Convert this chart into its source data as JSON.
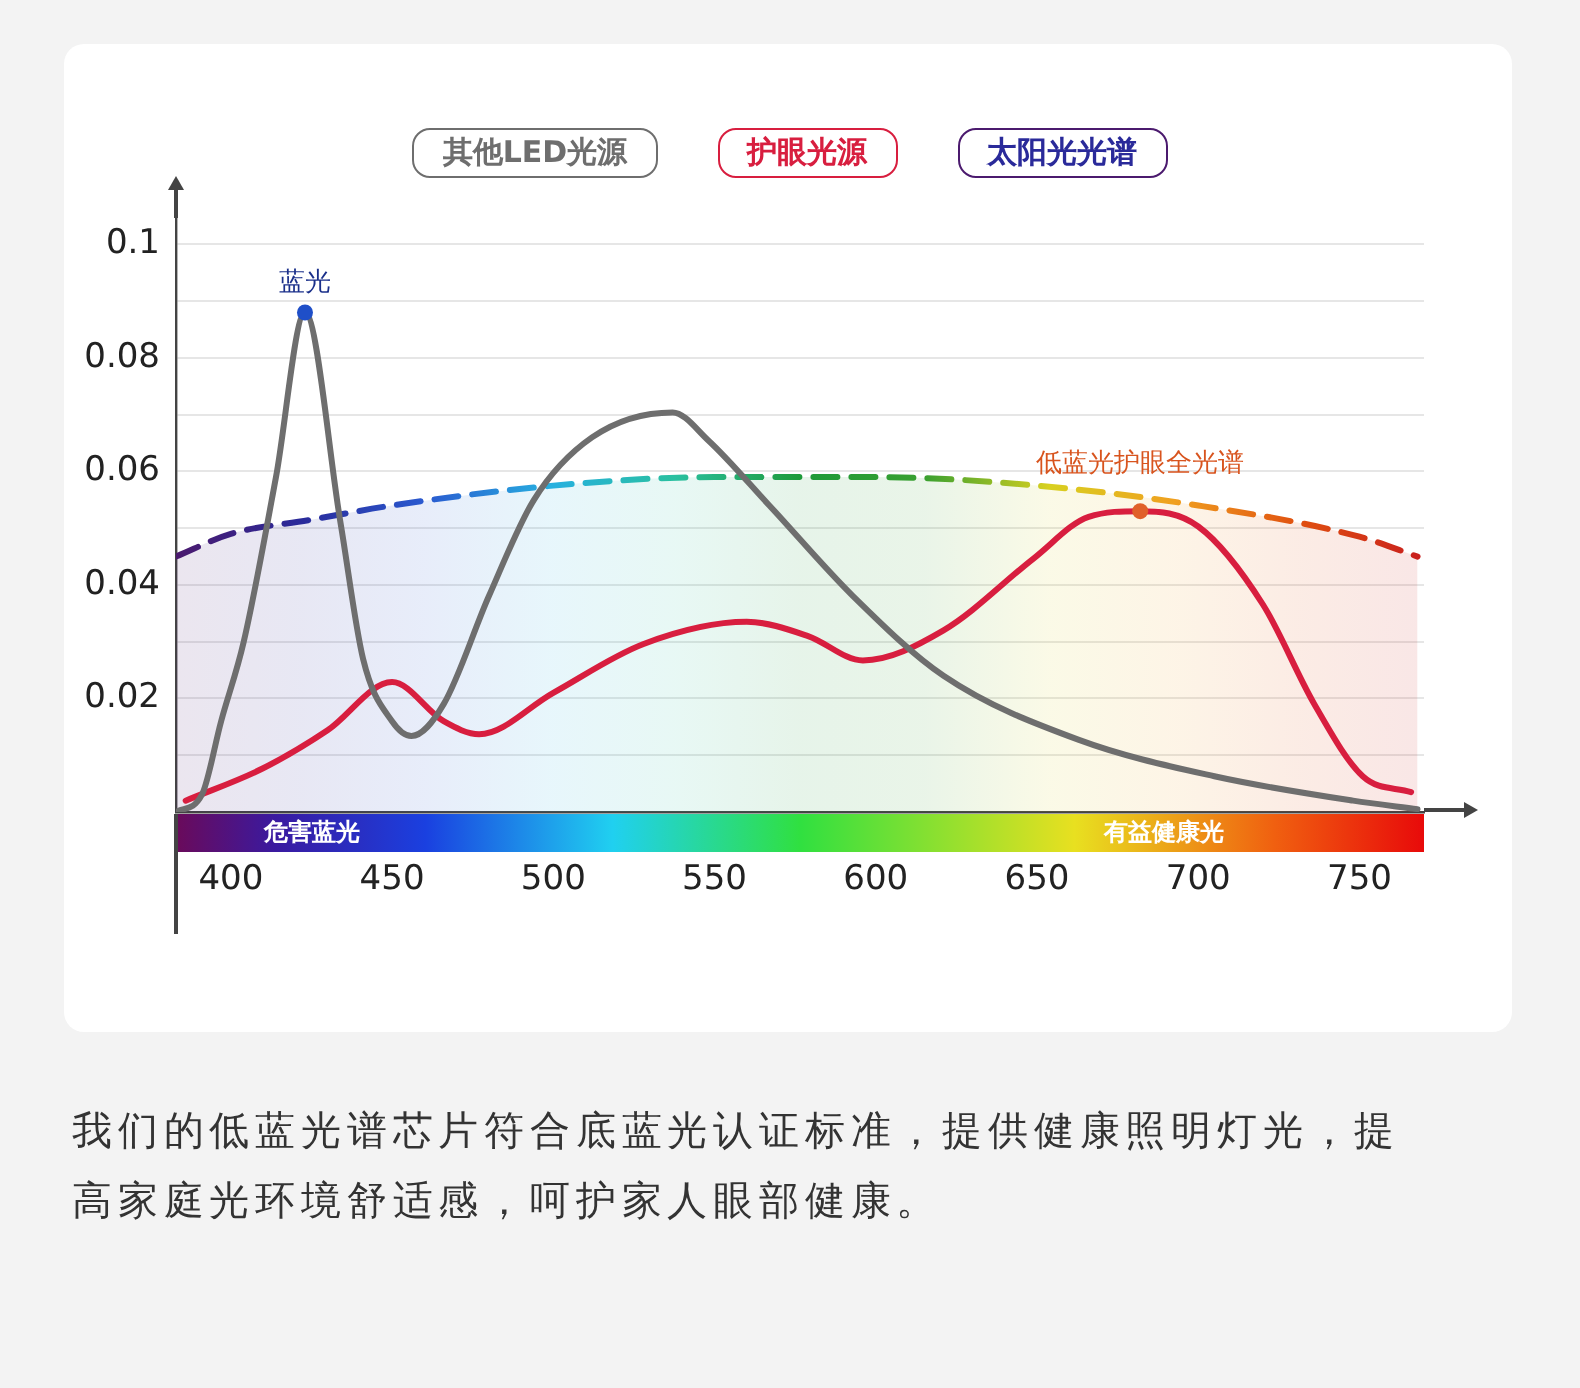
{
  "chart_data": {
    "type": "line",
    "legend": "top",
    "grid": "y",
    "xlim": [
      383,
      770
    ],
    "xticks": [
      400,
      450,
      500,
      550,
      600,
      650,
      700,
      750
    ],
    "ylim": [
      0,
      0.105
    ],
    "yticks": [
      {
        "value": 0,
        "label": null
      },
      {
        "value": 0.01,
        "label": null
      },
      0.02,
      {
        "value": 0.03,
        "label": null
      },
      0.04,
      {
        "value": 0.05,
        "label": null
      },
      0.06,
      {
        "value": 0.07,
        "label": null
      },
      0.08,
      {
        "value": 0.09,
        "label": null
      },
      0.1
    ],
    "series": [
      {
        "name": "其他LED光源",
        "color": "#6e6e6e",
        "x": [
          383,
          391,
          397,
          404,
          414,
          423,
          434,
          441,
          450,
          456,
          466,
          480,
          494,
          512,
          537,
          548,
          567,
          593,
          621,
          663,
          705,
          748,
          768
        ],
        "values": [
          0,
          0.003,
          0.016,
          0.03,
          0.059,
          0.088,
          0.051,
          0.027,
          0.016,
          0.0134,
          0.019,
          0.038,
          0.055,
          0.066,
          0.0704,
          0.0655,
          0.054,
          0.038,
          0.024,
          0.0127,
          0.0063,
          0.002,
          0.0005
        ]
      },
      {
        "name": "护眼光源",
        "color": "#d81e3f",
        "x": [
          386,
          410,
          430,
          450,
          466,
          477,
          500,
          528,
          560,
          579,
          596,
          621,
          649,
          666,
          682,
          700,
          720,
          736,
          751,
          766
        ],
        "values": [
          0.002,
          0.0077,
          0.0144,
          0.0229,
          0.016,
          0.0137,
          0.021,
          0.0296,
          0.0335,
          0.031,
          0.0267,
          0.032,
          0.0447,
          0.052,
          0.053,
          0.0503,
          0.0366,
          0.019,
          0.0063,
          0.0035
        ]
      },
      {
        "name": "太阳光光谱",
        "type": "area",
        "line_style": "dashed",
        "colors": [
          "#4b1a6e",
          "#2a2a9a",
          "#2a5ad0",
          "#27b0e0",
          "#2ac0a0",
          "#1e9a3a",
          "#3aa030",
          "#d8d020",
          "#f0a020",
          "#e05010",
          "#c81e1e"
        ],
        "x": [
          383,
          400,
          425,
          450,
          500,
          550,
          600,
          650,
          700,
          750,
          768
        ],
        "values": [
          0.045,
          0.049,
          0.0515,
          0.054,
          0.0575,
          0.059,
          0.059,
          0.0575,
          0.054,
          0.0485,
          0.045
        ]
      }
    ],
    "annotations": [
      {
        "text": "蓝光",
        "x": 423,
        "y": 0.088
      },
      {
        "text": "低蓝光护眼全光谱",
        "x": 682,
        "y": 0.053
      },
      "危害蓝光",
      "有益健康光",
      "我们的低蓝光谱芯片符合底蓝光认证标准，提供健康照明灯光，提高家庭光环境舒适感，呵护家人眼部健康。"
    ]
  }
}
